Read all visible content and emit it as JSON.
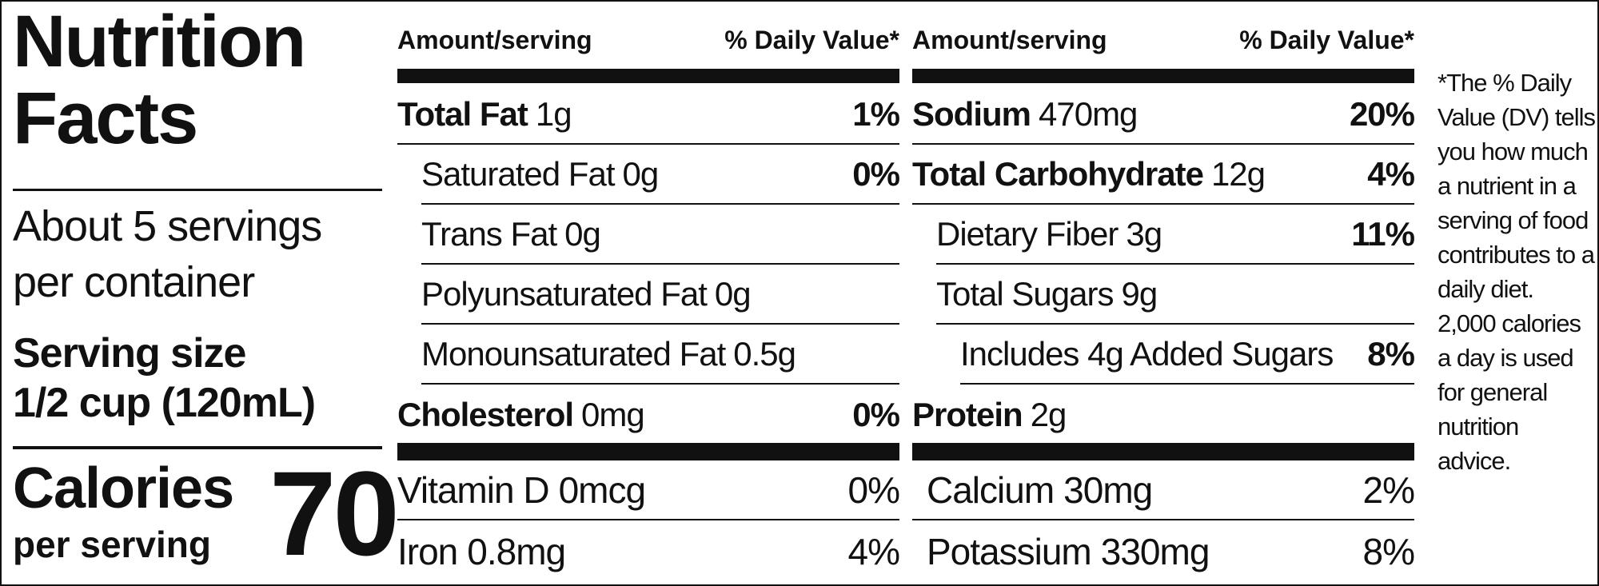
{
  "title": "Nutrition Facts",
  "servings": "About 5 servings per container",
  "serving_size_label": "Serving size",
  "serving_size": "1/2 cup (120mL)",
  "calories_label": "Calories",
  "calories_sub": "per serving",
  "calories": 70,
  "columns": [
    {
      "header_amount": "Amount/serving",
      "header_dv": "% Daily Value*",
      "rows": [
        {
          "name": "Total Fat",
          "amount": "1g",
          "dv": "1%",
          "bold": true,
          "indent": 0
        },
        {
          "name": "Saturated Fat",
          "amount": "0g",
          "dv": "0%",
          "bold": false,
          "indent": 1
        },
        {
          "name": "Trans Fat",
          "amount": "0g",
          "bold": false,
          "indent": 1
        },
        {
          "name": "Polyunsaturated Fat",
          "amount": "0g",
          "bold": false,
          "indent": 1
        },
        {
          "name": "Monounsaturated Fat",
          "amount": "0.5g",
          "bold": false,
          "indent": 1
        },
        {
          "name": "Cholesterol",
          "amount": "0mg",
          "dv": "0%",
          "bold": true,
          "indent": 0
        }
      ],
      "vitamins": [
        {
          "name": "Vitamin D",
          "amount": "0mcg",
          "dv": "0%"
        },
        {
          "name": "Iron",
          "amount": "0.8mg",
          "dv": "4%"
        }
      ]
    },
    {
      "header_amount": "Amount/serving",
      "header_dv": "% Daily Value*",
      "rows": [
        {
          "name": "Sodium",
          "amount": "470mg",
          "dv": "20%",
          "bold": true,
          "indent": 0
        },
        {
          "name": "Total Carbohydrate",
          "amount": "12g",
          "dv": "4%",
          "bold": true,
          "indent": 0
        },
        {
          "name": "Dietary Fiber",
          "amount": "3g",
          "dv": "11%",
          "bold": false,
          "indent": 1
        },
        {
          "name": "Total Sugars",
          "amount": "9g",
          "bold": false,
          "indent": 1
        },
        {
          "name": "Includes 4g Added Sugars",
          "dv": "8%",
          "bold": false,
          "indent": 2
        },
        {
          "name": "Protein",
          "amount": "2g",
          "bold": true,
          "indent": 0
        }
      ],
      "vitamins": [
        {
          "name": "Calcium",
          "amount": "30mg",
          "dv": "2%"
        },
        {
          "name": "Potassium",
          "amount": "330mg",
          "dv": "8%"
        }
      ]
    }
  ],
  "footnote": "*The % Daily Value (DV) tells you how much a nutrient in a serving of food contributes to a daily diet. 2,000 calories a day is used for general nutrition advice."
}
